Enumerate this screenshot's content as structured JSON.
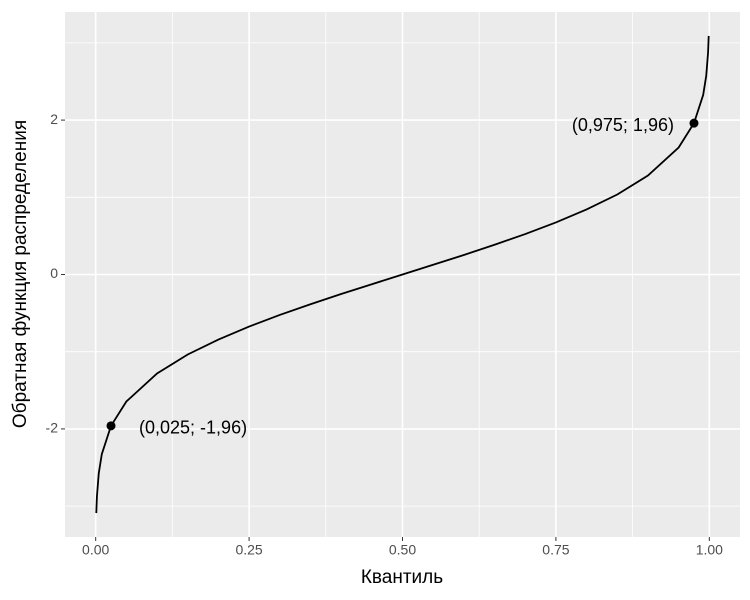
{
  "chart_data": {
    "type": "line",
    "x_label": "Квантиль",
    "y_label": "Обратная функция распределения",
    "curve": {
      "color": "#000000",
      "x": [
        0.001,
        0.002,
        0.005,
        0.01,
        0.025,
        0.05,
        0.1,
        0.15,
        0.2,
        0.25,
        0.3,
        0.35,
        0.4,
        0.45,
        0.5,
        0.55,
        0.6,
        0.65,
        0.7,
        0.75,
        0.8,
        0.85,
        0.9,
        0.95,
        0.975,
        0.99,
        0.995,
        0.998,
        0.999
      ],
      "y": [
        -3.09,
        -2.878,
        -2.576,
        -2.326,
        -1.96,
        -1.645,
        -1.282,
        -1.036,
        -0.842,
        -0.674,
        -0.524,
        -0.385,
        -0.253,
        -0.126,
        0,
        0.126,
        0.253,
        0.385,
        0.524,
        0.674,
        0.842,
        1.036,
        1.282,
        1.645,
        1.96,
        2.326,
        2.576,
        2.878,
        3.09
      ]
    },
    "points": {
      "color": "#000000",
      "x": [
        0.025,
        0.975
      ],
      "y": [
        -1.96,
        1.96
      ],
      "labels": [
        "(0,025; -1,96)",
        "(0,975; 1,96)"
      ]
    },
    "xlim": [
      -0.05,
      1.05
    ],
    "ylim": [
      -3.4,
      3.4
    ],
    "xticks": [
      {
        "value": 0,
        "label": "0.00"
      },
      {
        "value": 0.25,
        "label": "0.25"
      },
      {
        "value": 0.5,
        "label": "0.50"
      },
      {
        "value": 0.75,
        "label": "0.75"
      },
      {
        "value": 1,
        "label": "1.00"
      }
    ],
    "yticks": [
      -2,
      0,
      2
    ],
    "minor_xticks": [
      0.125,
      0.375,
      0.625,
      0.875
    ],
    "minor_yticks": [
      -3,
      -1,
      1,
      3
    ],
    "grid": true
  }
}
